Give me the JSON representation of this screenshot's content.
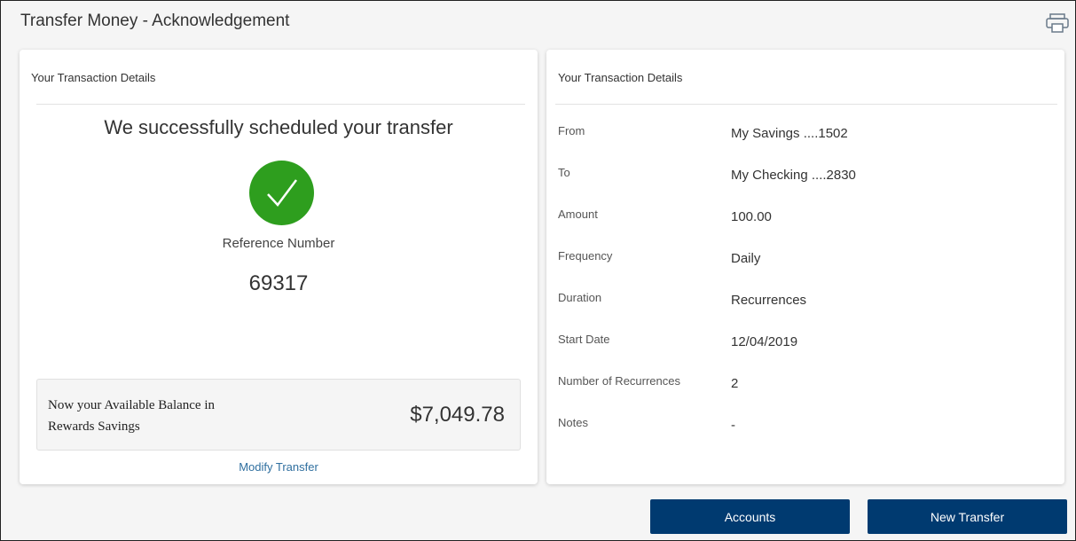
{
  "header": {
    "title": "Transfer Money - Acknowledgement",
    "print_icon": "printer-icon"
  },
  "left": {
    "heading": "Your Transaction Details",
    "success": "We successfully scheduled your transfer",
    "check_icon": "checkmark-icon",
    "check_color": "#2e9e1e",
    "ref_label": "Reference Number",
    "ref_number": "69317",
    "balance_text": "Now your Available Balance in Rewards Savings",
    "balance": "$7,049.78",
    "modify": "Modify Transfer"
  },
  "right": {
    "heading": "Your Transaction Details",
    "rows": [
      {
        "label": "From",
        "value": "My Savings ....1502"
      },
      {
        "label": "To",
        "value": "My Checking ....2830"
      },
      {
        "label": "Amount",
        "value": "100.00"
      },
      {
        "label": "Frequency",
        "value": "Daily"
      },
      {
        "label": "Duration",
        "value": "Recurrences"
      },
      {
        "label": "Start Date",
        "value": "12/04/2019"
      },
      {
        "label": "Number of Recurrences",
        "value": "2"
      },
      {
        "label": "Notes",
        "value": "-"
      }
    ]
  },
  "buttons": {
    "accounts": "Accounts",
    "new_transfer": "New Transfer",
    "color": "#003a70"
  }
}
